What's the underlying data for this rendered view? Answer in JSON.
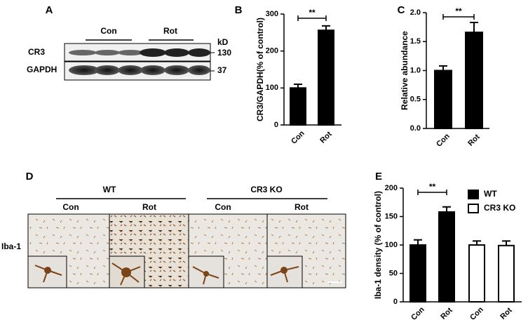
{
  "panel_a": {
    "label": "A",
    "groups": [
      "Con",
      "Rot"
    ],
    "kd": "kD",
    "rows": [
      {
        "name": "CR3",
        "size": "130"
      },
      {
        "name": "GAPDH",
        "size": "37"
      }
    ]
  },
  "panel_d": {
    "label": "D",
    "genotypes": [
      "WT",
      "CR3 KO"
    ],
    "conditions": [
      "Con",
      "Rot",
      "Con",
      "Rot"
    ],
    "stain": "Iba-1"
  },
  "chart_data": [
    {
      "type": "bar",
      "panel": "B",
      "ylabel": "CR3/GAPDH(% of control)",
      "categories": [
        "Con",
        "Rot"
      ],
      "values": [
        100,
        256
      ],
      "errors": [
        10,
        12
      ],
      "color": "#000000",
      "annotation": "**",
      "ylim": [
        0,
        300
      ],
      "yticks": [
        0,
        100,
        200,
        300
      ]
    },
    {
      "type": "bar",
      "panel": "C",
      "ylabel": "Relative abundance",
      "categories": [
        "Con",
        "Rot"
      ],
      "values": [
        1.0,
        1.66
      ],
      "errors": [
        0.08,
        0.17
      ],
      "color": "#000000",
      "annotation": "**",
      "ylim": [
        0,
        2
      ],
      "yticks": [
        {
          "value": 0,
          "label": "0.0"
        },
        0.5,
        {
          "value": 1,
          "label": "1.0"
        },
        1.5,
        {
          "value": 2,
          "label": "2.0"
        }
      ]
    },
    {
      "type": "bar",
      "panel": "E",
      "ylabel": "Iba-1 density (% of control)",
      "categories": [
        "Con",
        "Rot",
        "Con",
        "Rot"
      ],
      "series": [
        {
          "name": "WT",
          "color": "#000000",
          "values": [
            100,
            158,
            null,
            null
          ],
          "errors": [
            9,
            9,
            null,
            null
          ]
        },
        {
          "name": "CR3 KO",
          "color": "#ffffff",
          "values": [
            null,
            null,
            100,
            99
          ],
          "errors": [
            null,
            null,
            7,
            8
          ]
        }
      ],
      "annotation": "**",
      "ylim": [
        0,
        200
      ],
      "yticks": [
        0,
        50,
        100,
        150,
        200
      ]
    }
  ]
}
